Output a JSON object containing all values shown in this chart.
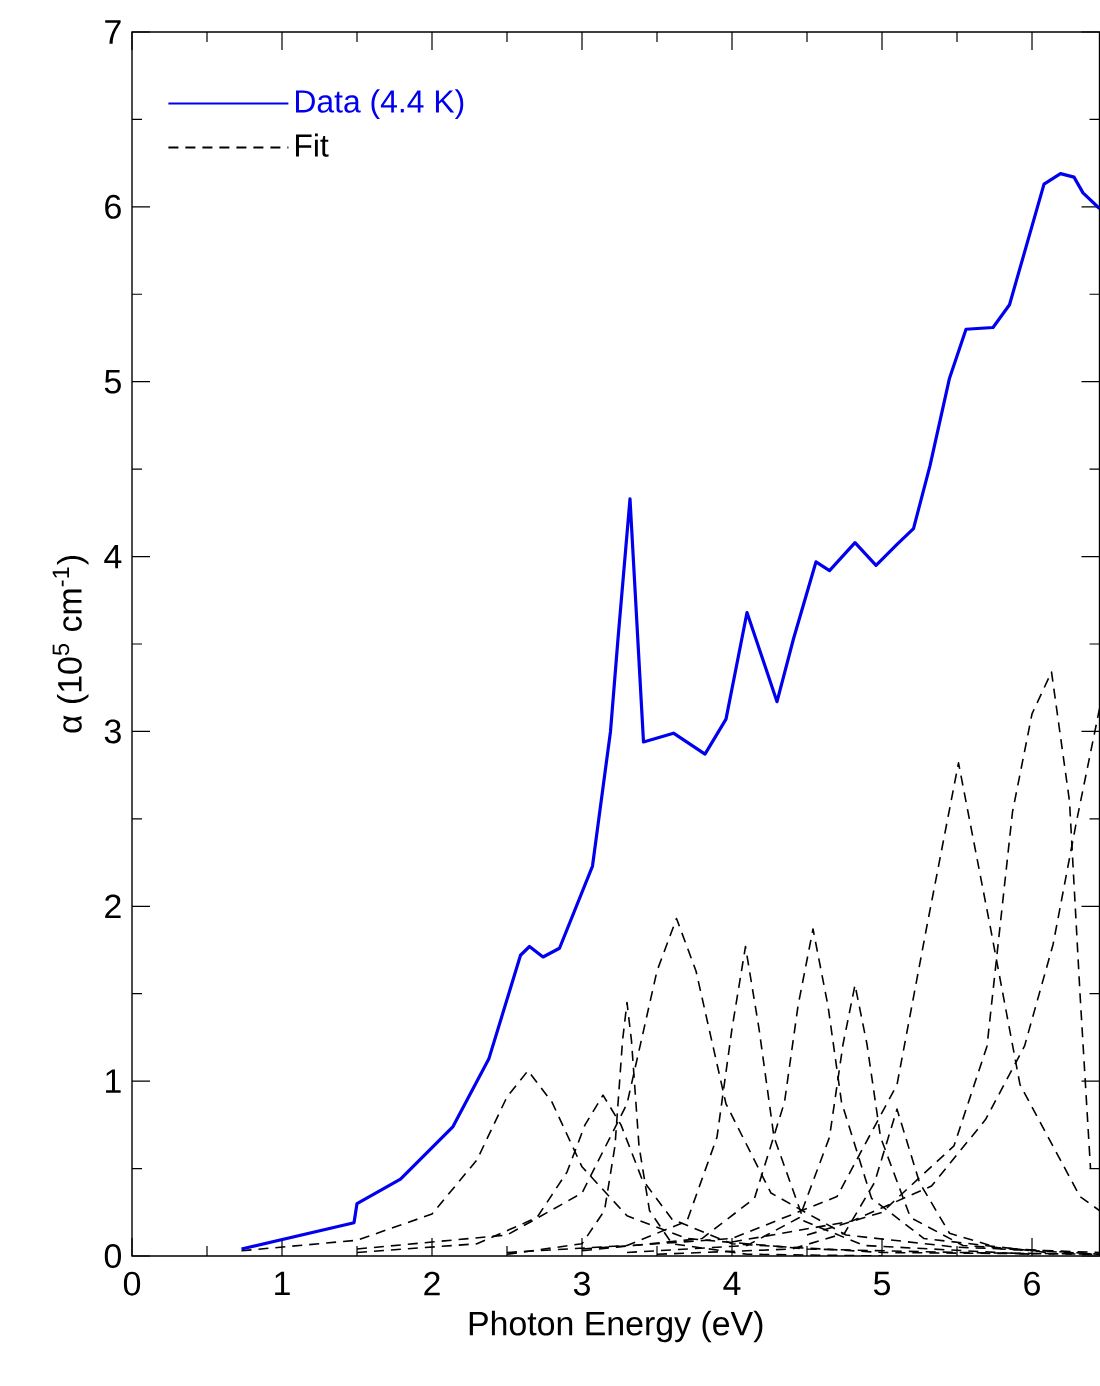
{
  "chart_data": {
    "type": "line",
    "xlabel": "Photon Energy (eV)",
    "ylabel": "α (10$^{5}$ cm$^{-1}$)",
    "xlim": [
      0,
      6.45
    ],
    "ylim": [
      0,
      7
    ],
    "xticks": [
      0,
      1,
      2,
      3,
      4,
      5,
      6
    ],
    "yticks": [
      0,
      1,
      2,
      3,
      4,
      5,
      6,
      7
    ],
    "grid": false,
    "legend": "top left",
    "marker": "none",
    "series": [
      {
        "name": "Data (4.4 K)",
        "color": "#0000ee",
        "line_style": "solid",
        "x": [
          0.73,
          1.48,
          1.5,
          1.79,
          2.14,
          2.38,
          2.59,
          2.65,
          2.74,
          2.85,
          3.07,
          3.19,
          3.24,
          3.32,
          3.41,
          3.61,
          3.82,
          3.96,
          4.1,
          4.3,
          4.41,
          4.56,
          4.65,
          4.82,
          4.96,
          5.1,
          5.21,
          5.32,
          5.45,
          5.56,
          5.74,
          5.85,
          6.08,
          6.19,
          6.28,
          6.34,
          6.45
        ],
        "values": [
          0.04,
          0.19,
          0.3,
          0.44,
          0.74,
          1.13,
          1.72,
          1.77,
          1.71,
          1.76,
          2.23,
          3.0,
          3.53,
          4.33,
          2.94,
          2.99,
          2.87,
          3.07,
          3.68,
          3.17,
          3.53,
          3.97,
          3.92,
          4.08,
          3.95,
          4.07,
          4.16,
          4.52,
          5.02,
          5.3,
          5.31,
          5.44,
          6.13,
          6.19,
          6.17,
          6.08,
          5.99
        ]
      },
      {
        "name": "Fit",
        "color": "#000000",
        "line_style": "dashed",
        "x": [
          0.73,
          1.5,
          2.0,
          2.3,
          2.5,
          2.64,
          2.8,
          3.0,
          3.3,
          3.7,
          4.5,
          5.5,
          6.45
        ],
        "values": [
          0.03,
          0.09,
          0.24,
          0.55,
          0.91,
          1.06,
          0.88,
          0.51,
          0.23,
          0.1,
          0.04,
          0.02,
          0.01
        ]
      },
      {
        "color": "#000000",
        "line_style": "dashed",
        "x": [
          1.5,
          2.3,
          2.7,
          2.9,
          3.02,
          3.14,
          3.26,
          3.4,
          3.6,
          4.0,
          5.0,
          6.45
        ],
        "values": [
          0.02,
          0.07,
          0.22,
          0.48,
          0.75,
          0.92,
          0.75,
          0.44,
          0.21,
          0.07,
          0.02,
          0.01
        ]
      },
      {
        "color": "#000000",
        "line_style": "dashed",
        "x": [
          2.5,
          3.0,
          3.15,
          3.22,
          3.27,
          3.3,
          3.33,
          3.38,
          3.45,
          3.6,
          4.1,
          5.0
        ],
        "values": [
          0.01,
          0.07,
          0.26,
          0.63,
          1.23,
          1.45,
          1.23,
          0.63,
          0.26,
          0.07,
          0.01,
          0.0
        ]
      },
      {
        "color": "#000000",
        "line_style": "dashed",
        "x": [
          1.5,
          2.5,
          3.0,
          3.3,
          3.5,
          3.63,
          3.76,
          3.96,
          4.26,
          4.76,
          5.5,
          6.45
        ],
        "values": [
          0.04,
          0.12,
          0.36,
          0.87,
          1.63,
          1.93,
          1.63,
          0.87,
          0.36,
          0.12,
          0.05,
          0.02
        ]
      },
      {
        "color": "#000000",
        "line_style": "dashed",
        "x": [
          2.5,
          3.3,
          3.7,
          3.9,
          4.0,
          4.09,
          4.18,
          4.28,
          4.48,
          4.88,
          6.0
        ],
        "values": [
          0.02,
          0.06,
          0.2,
          0.68,
          1.3,
          1.77,
          1.3,
          0.68,
          0.2,
          0.06,
          0.01
        ]
      },
      {
        "color": "#000000",
        "line_style": "dashed",
        "x": [
          3.0,
          3.8,
          4.15,
          4.35,
          4.44,
          4.54,
          4.64,
          4.73,
          4.93,
          5.28,
          6.1
        ],
        "values": [
          0.03,
          0.1,
          0.33,
          0.88,
          1.43,
          1.87,
          1.43,
          0.88,
          0.33,
          0.1,
          0.02
        ]
      },
      {
        "color": "#000000",
        "line_style": "dashed",
        "x": [
          3.3,
          4.1,
          4.45,
          4.65,
          4.74,
          4.82,
          4.9,
          4.99,
          5.19,
          5.54,
          6.45
        ],
        "values": [
          0.02,
          0.06,
          0.22,
          0.68,
          1.21,
          1.55,
          1.21,
          0.68,
          0.22,
          0.06,
          0.01
        ]
      },
      {
        "color": "#000000",
        "line_style": "dashed",
        "x": [
          3.5,
          4.4,
          4.75,
          4.95,
          5.1,
          5.25,
          5.45,
          5.8,
          6.45
        ],
        "values": [
          0.01,
          0.04,
          0.13,
          0.42,
          0.84,
          0.42,
          0.13,
          0.04,
          0.01
        ]
      },
      {
        "color": "#000000",
        "line_style": "dashed",
        "x": [
          3.0,
          4.0,
          4.7,
          5.1,
          5.3,
          5.51,
          5.72,
          5.92,
          6.32,
          6.45
        ],
        "values": [
          0.04,
          0.1,
          0.34,
          0.98,
          1.89,
          2.82,
          1.89,
          0.98,
          0.34,
          0.26
        ]
      },
      {
        "color": "#000000",
        "line_style": "dashed",
        "x": [
          4.5,
          5.0,
          5.48,
          5.7,
          5.87,
          6.0,
          6.13,
          6.25,
          6.32,
          6.39
        ],
        "values": [
          0.12,
          0.25,
          0.63,
          1.2,
          2.54,
          3.1,
          3.34,
          2.6,
          1.5,
          0.5
        ]
      },
      {
        "color": "#000000",
        "line_style": "dashed",
        "x": [
          4.0,
          4.8,
          5.33,
          5.69,
          5.95,
          6.14,
          6.3,
          6.45
        ],
        "values": [
          0.08,
          0.2,
          0.4,
          0.78,
          1.2,
          1.78,
          2.5,
          3.13
        ]
      }
    ]
  }
}
